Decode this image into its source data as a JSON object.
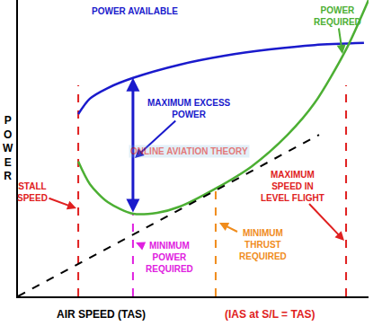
{
  "chart_data": {
    "type": "line",
    "x_label": "AIR SPEED (TAS)",
    "x_label_note": "(IAS at S/L = TAS)",
    "x_label_note_color": "#e02020",
    "y_label": "POWER",
    "watermark": "ONLINE AVIATION THEORY",
    "xlim": [
      0,
      100
    ],
    "ylim": [
      0,
      100
    ],
    "tick_labels": false,
    "grid": false,
    "series": [
      {
        "name": "POWER AVAILABLE",
        "color": "#1a1acc",
        "line_style": "solid",
        "x": [
          17.2,
          20.5,
          25.6,
          32.8,
          46.2,
          59.0,
          71.8,
          84.6,
          98.7
        ],
        "values": [
          61.5,
          66.7,
          70.3,
          73.7,
          78.2,
          81.2,
          83.3,
          84.8,
          85.5
        ]
      },
      {
        "name": "POWER REQUIRED",
        "color": "#4caf33",
        "line_style": "solid",
        "x": [
          17.2,
          20.5,
          25.6,
          32.8,
          39.7,
          46.2,
          56.4,
          66.7,
          76.9,
          84.6,
          93.6,
          100
        ],
        "values": [
          45.5,
          37.9,
          31.8,
          27.9,
          28.2,
          30.3,
          36.4,
          43.9,
          54.5,
          65.2,
          83.3,
          100
        ]
      },
      {
        "color": "#000000",
        "line_style": "dash",
        "x": [
          0,
          85.9
        ],
        "values": [
          0,
          54.5
        ]
      }
    ],
    "reference_lines": [
      {
        "label": [
          "STALL",
          "SPEED"
        ],
        "x": 17.2,
        "y": [
          0,
          71.2
        ],
        "color": "#e02020",
        "line_style": "dash"
      },
      {
        "label": [
          "MINIMUM",
          "POWER",
          "REQUIRED"
        ],
        "x": 32.8,
        "y": [
          0,
          27.9
        ],
        "color": "#e020e0",
        "line_style": "dash"
      },
      {
        "label": [
          "MINIMUM",
          "THRUST",
          "REQUIRED"
        ],
        "x": 56.4,
        "y": [
          0,
          36.4
        ],
        "color": "#f08c1c",
        "line_style": "dash"
      },
      {
        "label": [
          "MAXIMUM",
          "SPEED IN",
          "LEVEL FLIGHT"
        ],
        "x": 93.6,
        "y": [
          0,
          71.2
        ],
        "color": "#e02020",
        "line_style": "dash"
      }
    ],
    "annotations": [
      {
        "text": [
          "MAXIMUM EXCESS",
          "POWER"
        ],
        "color": "#1a1acc"
      }
    ]
  }
}
